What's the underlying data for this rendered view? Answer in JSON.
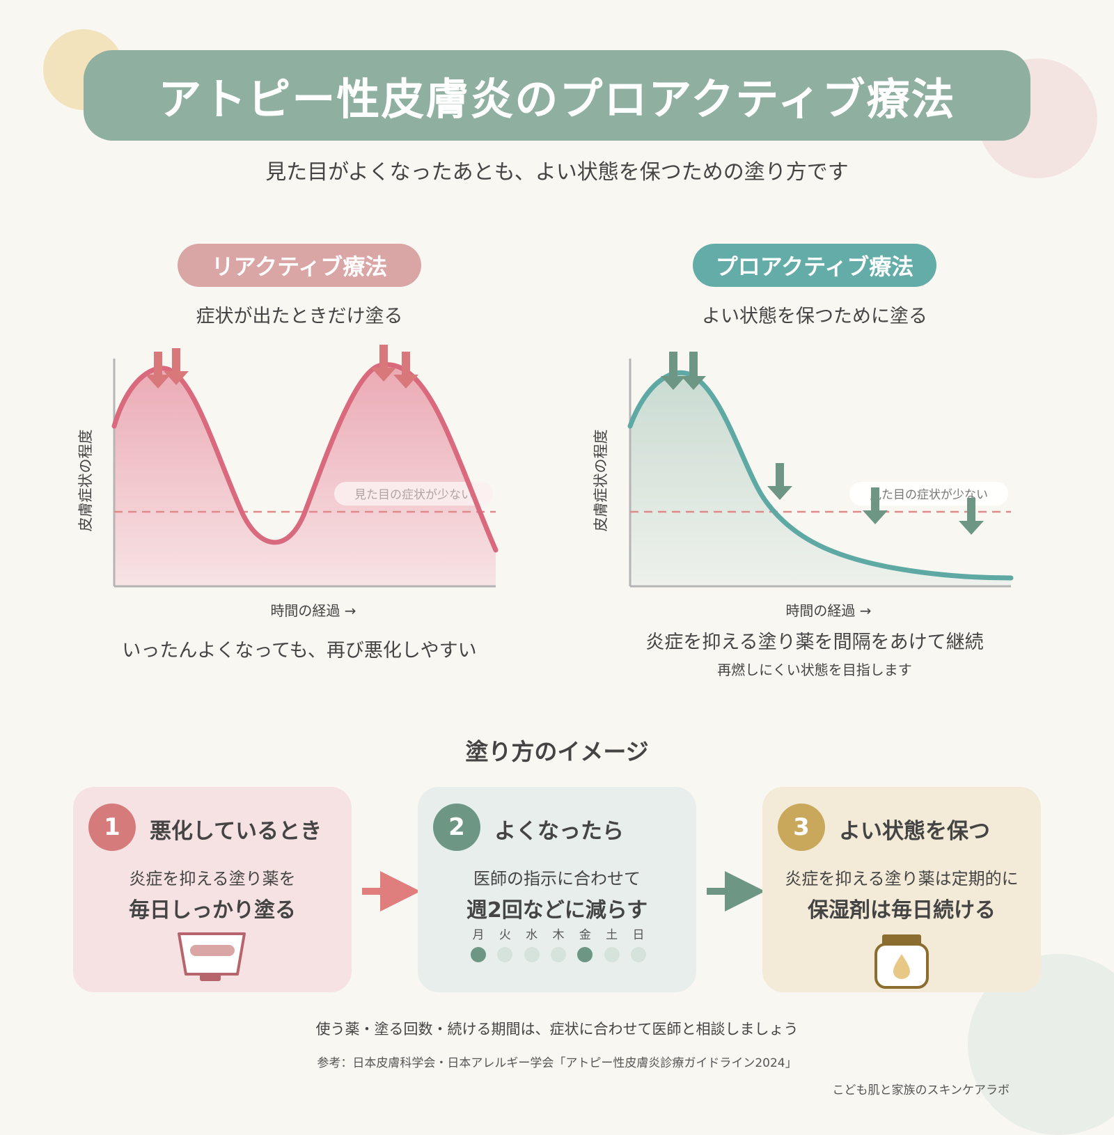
{
  "header": {
    "title": "アトピー性皮膚炎のプロアクティブ療法"
  },
  "subtitle": "見た目がよくなったあとも、よい状態を保つための塗り方です",
  "colors": {
    "header": "#8fafa0",
    "reactive": "#d9a5a5",
    "proactive": "#64aca8",
    "reactive_curve": "#d96a7e",
    "proactive_curve": "#5fa9a4",
    "threshold": "#e08a8a"
  },
  "reactive": {
    "pill": "リアクティブ療法",
    "desc": "症状が出たときだけ塗る",
    "y_label": "皮膚症状の程度",
    "x_label": "時間の経過 →",
    "threshold_label": "見た目の症状が少ない",
    "caption": "いったんよくなっても、再び悪化しやすい"
  },
  "proactive": {
    "pill": "プロアクティブ療法",
    "desc": "よい状態を保つために塗る",
    "y_label": "皮膚症状の程度",
    "x_label": "時間の経過 →",
    "threshold_label": "見た目の症状が少ない",
    "caption": "炎症を抑える塗り薬を間隔をあけて継続",
    "caption_sub": "再燃しにくい状態を目指します"
  },
  "section_title": "塗り方のイメージ",
  "steps": [
    {
      "number": "1",
      "title": "悪化しているとき",
      "line1": "炎症を抑える塗り薬を",
      "line2": "毎日しっかり塗る",
      "icon": "ointment-tube-icon"
    },
    {
      "number": "2",
      "title": "よくなったら",
      "line1": "医師の指示に合わせて",
      "line2": "週2回などに減らす",
      "days": [
        "月",
        "火",
        "水",
        "木",
        "金",
        "土",
        "日"
      ],
      "applied_days": [
        "月",
        "金"
      ]
    },
    {
      "number": "3",
      "title": "よい状態を保つ",
      "line1": "炎症を抑える塗り薬は定期的に",
      "line2": "保湿剤は毎日続ける",
      "icon": "moisturizer-jar-icon"
    }
  ],
  "footer": {
    "note": "使う薬・塗る回数・続ける期間は、症状に合わせて医師と相談しましょう",
    "reference": "参考：日本皮膚科学会・日本アレルギー学会「アトピー性皮膚炎診療ガイドライン2024」",
    "brand": "こども肌と家族のスキンケアラボ"
  }
}
